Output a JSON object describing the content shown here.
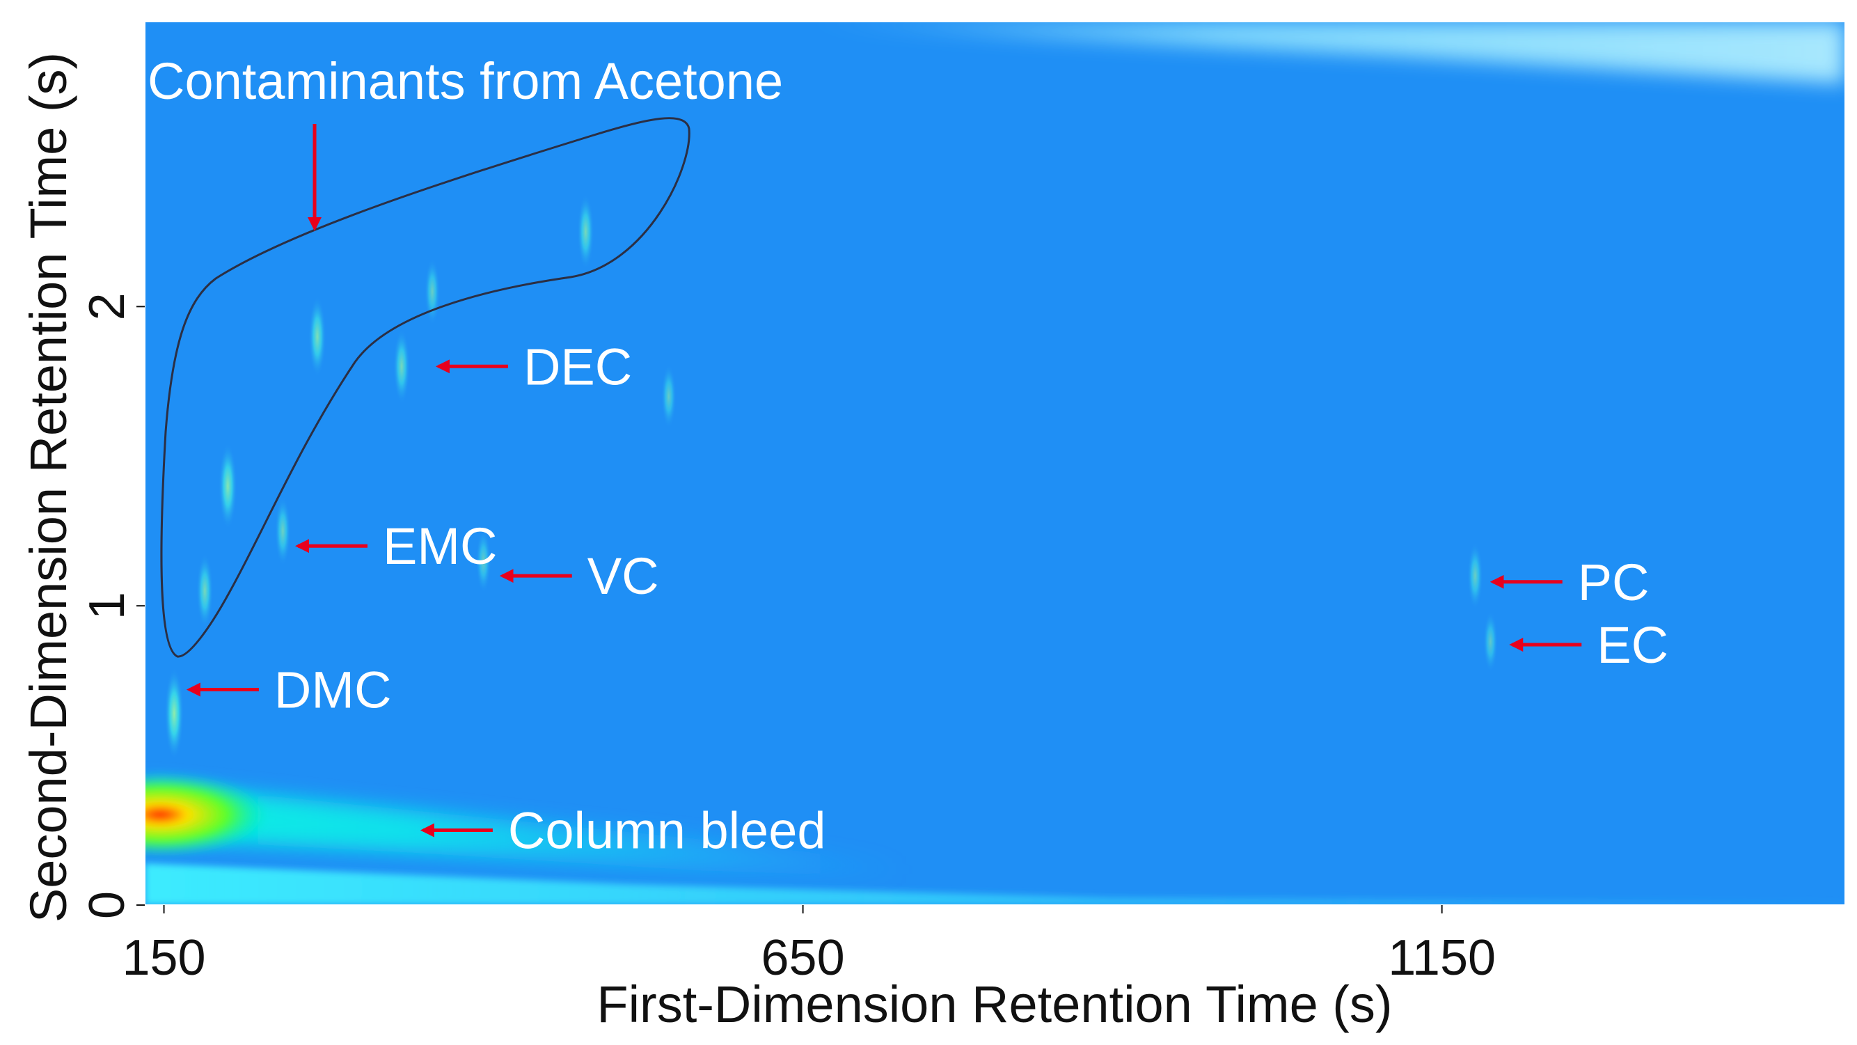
{
  "chart_data": {
    "type": "heatmap",
    "title": "",
    "xlabel": "First-Dimension Retention Time (s)",
    "ylabel": "Second-Dimension Retention Time (s)",
    "xlim": [
      135,
      1465
    ],
    "ylim": [
      0,
      2.95
    ],
    "xticks": [
      150,
      650,
      1150
    ],
    "yticks": [
      0,
      1,
      2
    ],
    "grid": false,
    "legend": "none",
    "colors": {
      "background": "#1f8ff5",
      "band_low": "#00e5ff",
      "band_mid": "#6cff3c",
      "band_high": "#ffe000",
      "band_peak": "#ff2a00",
      "arrow": "#e8001c",
      "outline": "#2b2f44",
      "label": "#ffffff"
    },
    "peaks": [
      {
        "x": 158,
        "y": 0.64,
        "intensity": 0.8
      },
      {
        "x": 182,
        "y": 1.05,
        "intensity": 0.5
      },
      {
        "x": 200,
        "y": 1.4,
        "intensity": 0.7
      },
      {
        "x": 243,
        "y": 1.25,
        "intensity": 0.4
      },
      {
        "x": 270,
        "y": 1.9,
        "intensity": 0.6
      },
      {
        "x": 336,
        "y": 1.8,
        "intensity": 0.5
      },
      {
        "x": 360,
        "y": 2.05,
        "intensity": 0.35
      },
      {
        "x": 400,
        "y": 1.15,
        "intensity": 0.3
      },
      {
        "x": 480,
        "y": 2.25,
        "intensity": 0.5
      },
      {
        "x": 545,
        "y": 1.7,
        "intensity": 0.3
      },
      {
        "x": 1176,
        "y": 1.1,
        "intensity": 0.35
      },
      {
        "x": 1188,
        "y": 0.88,
        "intensity": 0.25
      }
    ],
    "annotations": [
      {
        "id": "dmc",
        "text": "DMC",
        "x": 160,
        "y": 0.72
      },
      {
        "id": "emc",
        "text": "EMC",
        "x": 245,
        "y": 1.2
      },
      {
        "id": "vc",
        "text": "VC",
        "x": 405,
        "y": 1.1
      },
      {
        "id": "dec",
        "text": "DEC",
        "x": 355,
        "y": 1.8
      },
      {
        "id": "pc",
        "text": "PC",
        "x": 1180,
        "y": 1.08
      },
      {
        "id": "ec",
        "text": "EC",
        "x": 1195,
        "y": 0.87
      },
      {
        "id": "column-bleed",
        "text": "Column bleed",
        "x": 343,
        "y": 0.25
      },
      {
        "id": "contaminants",
        "text": "Contaminants from Acetone",
        "x": 280,
        "y": 2.25
      }
    ]
  }
}
